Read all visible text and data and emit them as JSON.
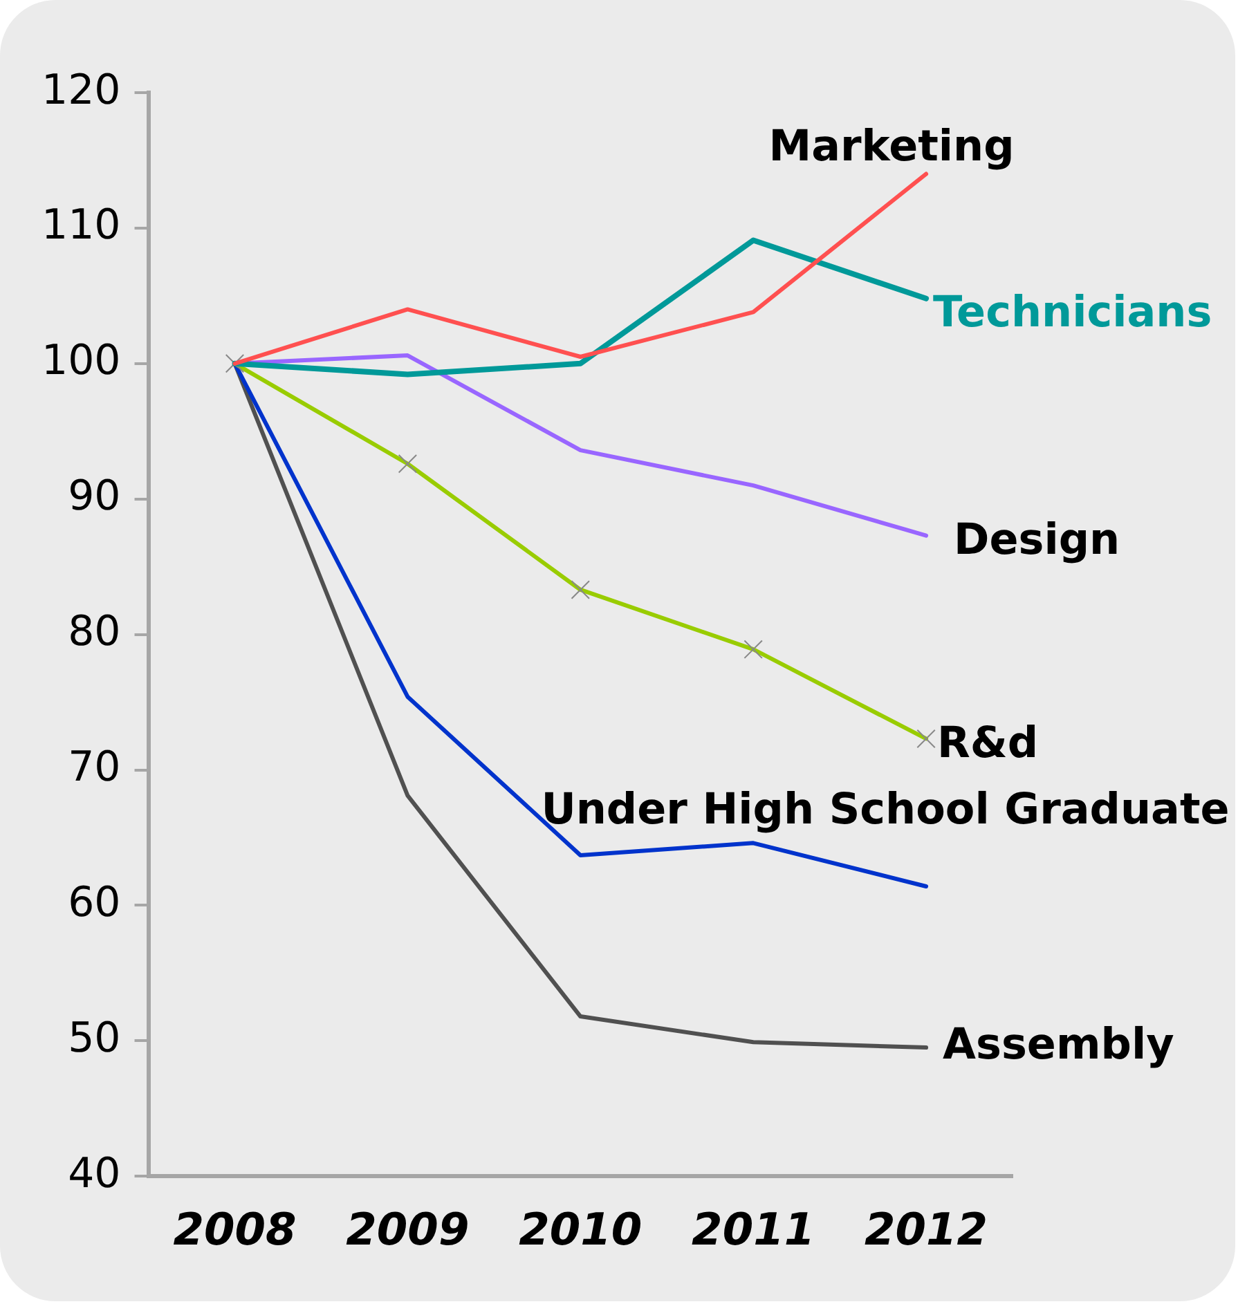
{
  "chart_data": {
    "type": "line",
    "categories": [
      "2008",
      "2009",
      "2010",
      "2011",
      "2012"
    ],
    "ylim": [
      40,
      120
    ],
    "yticks": [
      40,
      50,
      60,
      70,
      80,
      90,
      100,
      110,
      120
    ],
    "grid": false,
    "legend": false,
    "marker": "none",
    "series": [
      {
        "name": "Marketing",
        "color": "#ff5050",
        "values": [
          100,
          104.0,
          100.5,
          103.8,
          114.0
        ]
      },
      {
        "name": "Technicians",
        "color": "#009999",
        "values": [
          100,
          99.2,
          100.0,
          109.1,
          104.8
        ]
      },
      {
        "name": "Design",
        "color": "#9966ff",
        "values": [
          100,
          100.6,
          93.6,
          91.0,
          87.3
        ]
      },
      {
        "name": "R&d",
        "color": "#99cc00",
        "marker": "cross",
        "values": [
          100,
          92.6,
          83.3,
          78.9,
          72.3
        ]
      },
      {
        "name": "Under High School Graduate",
        "color": "#0033cc",
        "values": [
          100,
          75.4,
          63.7,
          64.6,
          61.4
        ]
      },
      {
        "name": "Assembly",
        "color": "#505050",
        "values": [
          100,
          68.1,
          51.8,
          49.9,
          49.5
        ]
      }
    ]
  }
}
